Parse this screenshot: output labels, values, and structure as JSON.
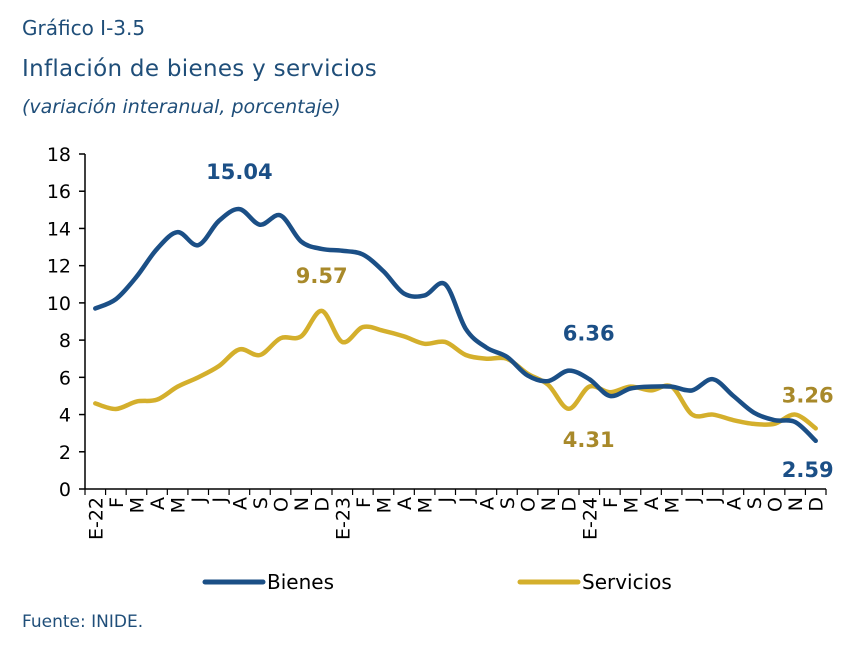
{
  "header": {
    "kicker": "Gráfico I-3.5",
    "title": "Inflación de bienes y servicios",
    "subtitle": "(variación interanual, porcentaje)"
  },
  "footer": {
    "source": "Fuente: INIDE."
  },
  "colors": {
    "bienes": "#1B4F86",
    "servicios": "#D4AF2C",
    "annot_servicios": "#A8892A"
  },
  "chart_data": {
    "type": "line",
    "x": [
      "E-22",
      "F",
      "M",
      "A",
      "M",
      "J",
      "J",
      "A",
      "S",
      "O",
      "N",
      "D",
      "E-23",
      "F",
      "M",
      "A",
      "M",
      "J",
      "J",
      "A",
      "S",
      "O",
      "N",
      "D",
      "E-24",
      "F",
      "M",
      "A",
      "M",
      "J",
      "J",
      "A",
      "S",
      "O",
      "N",
      "D"
    ],
    "ylim": [
      0,
      18
    ],
    "yticks": [
      0,
      2,
      4,
      6,
      8,
      10,
      12,
      14,
      16,
      18
    ],
    "legend_position": "bottom",
    "grid": false,
    "series": [
      {
        "name": "Bienes",
        "color": "#1B4F86",
        "values": [
          9.7,
          10.2,
          11.4,
          12.9,
          13.8,
          13.1,
          14.4,
          15.04,
          14.2,
          14.7,
          13.3,
          12.9,
          12.8,
          12.6,
          11.7,
          10.5,
          10.4,
          11.0,
          8.6,
          7.6,
          7.1,
          6.1,
          5.8,
          6.36,
          5.9,
          5.0,
          5.4,
          5.5,
          5.5,
          5.3,
          5.9,
          5.0,
          4.1,
          3.7,
          3.6,
          2.59
        ]
      },
      {
        "name": "Servicios",
        "color": "#D4AF2C",
        "values": [
          4.6,
          4.3,
          4.7,
          4.8,
          5.5,
          6.0,
          6.6,
          7.5,
          7.2,
          8.1,
          8.2,
          9.57,
          7.9,
          8.7,
          8.5,
          8.2,
          7.8,
          7.9,
          7.2,
          7.0,
          7.0,
          6.2,
          5.6,
          4.31,
          5.5,
          5.2,
          5.5,
          5.3,
          5.5,
          4.0,
          4.0,
          3.7,
          3.5,
          3.5,
          4.0,
          3.26
        ]
      }
    ],
    "annotations": [
      {
        "text": "15.04",
        "series": "Bienes",
        "index": 7
      },
      {
        "text": "9.57",
        "series": "Servicios",
        "index": 11
      },
      {
        "text": "6.36",
        "series": "Bienes",
        "index": 23
      },
      {
        "text": "4.31",
        "series": "Servicios",
        "index": 23
      },
      {
        "text": "3.26",
        "series": "Servicios",
        "index": 35
      },
      {
        "text": "2.59",
        "series": "Bienes",
        "index": 35
      }
    ]
  }
}
